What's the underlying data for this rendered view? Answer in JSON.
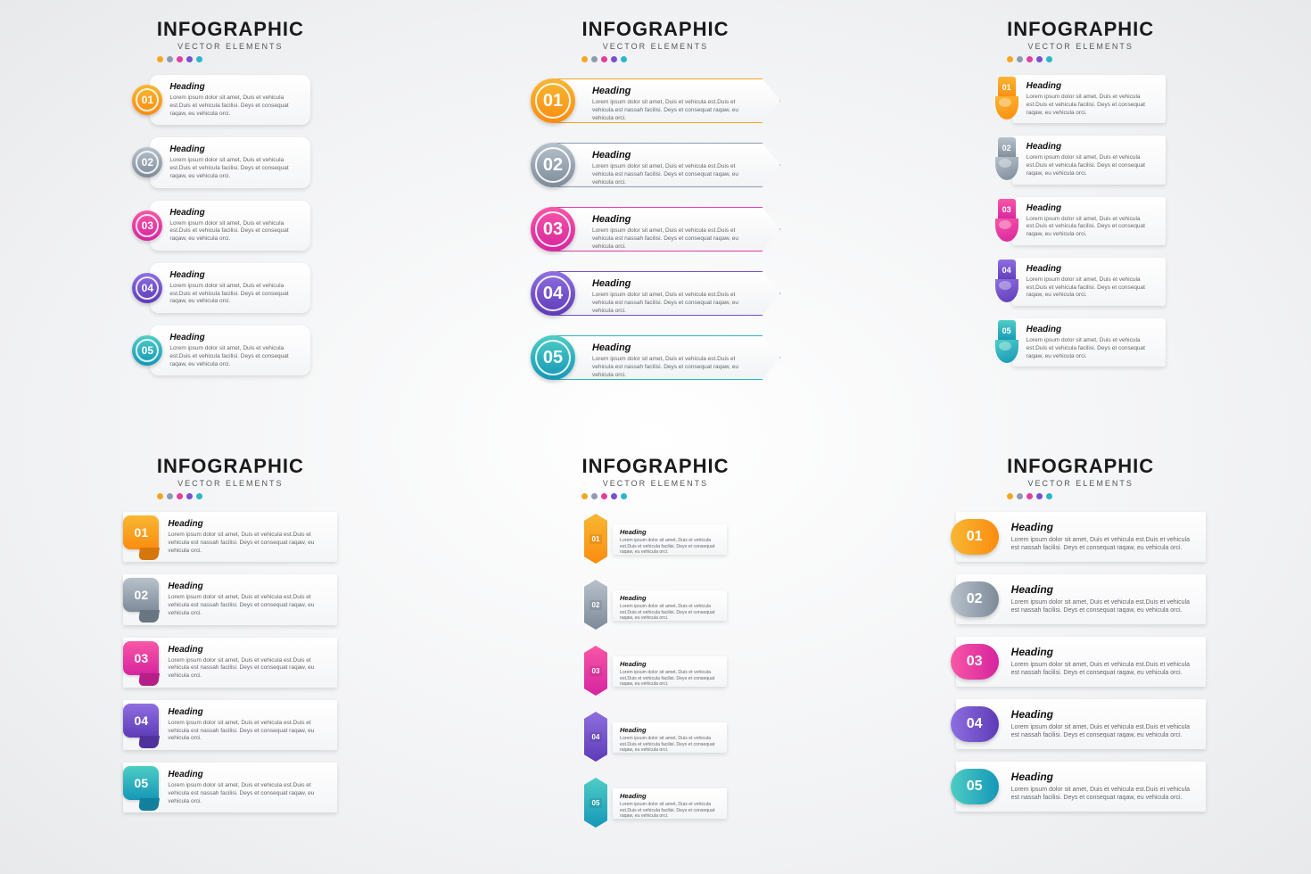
{
  "type": "infographic",
  "global": {
    "title": "INFOGRAPHIC",
    "subtitle": "VECTOR ELEMENTS",
    "title_fontsize": 22,
    "subtitle_fontsize": 9,
    "heading_label": "Heading",
    "body_short": "Lorem ipsum dolor sit amet, Duis et vehicula est.Duis et vehicula facilisi. Deys et consequat raqaw, eu vehicula orci.",
    "body_long": "Lorem ipsum dolor sit amet, Duis et vehicula est.Duis et vehicula est nassah facilisi. Deys et consequat raqaw, eu vehicula orci.",
    "background_color": "#f1f2f4",
    "card_gradient": [
      "#ffffff",
      "#f2f3f5"
    ],
    "text_color_heading": "#111111",
    "text_color_body": "#666666",
    "shadow": "0 2px 5px rgba(0,0,0,0.12)"
  },
  "palette_dots": [
    "#f5a623",
    "#8e9aaf",
    "#e23ea0",
    "#7a4fcf",
    "#2bb6c9"
  ],
  "steps": [
    {
      "num": "01",
      "gradient": [
        "#f7b733",
        "#fc8c0f"
      ],
      "solid": "#f5a623"
    },
    {
      "num": "02",
      "gradient": [
        "#b8c2cc",
        "#7d8a99"
      ],
      "solid": "#8e9aaf"
    },
    {
      "num": "03",
      "gradient": [
        "#f857a6",
        "#d6249f"
      ],
      "solid": "#e23ea0"
    },
    {
      "num": "04",
      "gradient": [
        "#8e6fe0",
        "#5e3bb7"
      ],
      "solid": "#7a4fcf"
    },
    {
      "num": "05",
      "gradient": [
        "#4ecdc4",
        "#1597b8"
      ],
      "solid": "#2bb6c9"
    }
  ],
  "panels": [
    {
      "id": "style1",
      "layout": "circle-badge-card",
      "item_width": 180,
      "badge_diameter": 34,
      "card_radius": 10
    },
    {
      "id": "style2",
      "layout": "large-circle-arrow-banner",
      "item_width": 280,
      "badge_diameter": 50,
      "arrow_clip": "92%"
    },
    {
      "id": "style3",
      "layout": "ribbon-curl-card",
      "item_width": 190,
      "ribbon_width": 24
    },
    {
      "id": "style4",
      "layout": "rounded-tag-pagecurl",
      "item_width": 240,
      "tag_size": [
        40,
        38
      ]
    },
    {
      "id": "style5",
      "layout": "vertical-arrow-ribbon",
      "item_width": 160,
      "arrow_size": [
        26,
        56
      ]
    },
    {
      "id": "style6",
      "layout": "pill-badge-card",
      "item_width": 280,
      "pill_size": [
        54,
        40
      ]
    }
  ]
}
